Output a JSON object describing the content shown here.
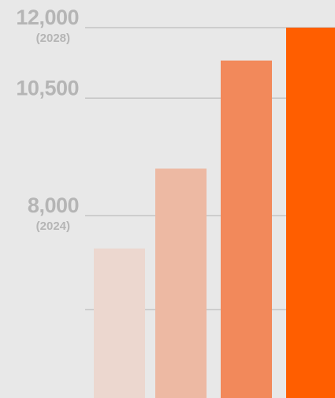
{
  "chart_data": {
    "type": "bar",
    "categories": [
      "",
      "",
      "",
      ""
    ],
    "values": [
      7300,
      9000,
      11300,
      12000
    ],
    "colors": [
      "#ecd7cf",
      "#edb9a3",
      "#f2895b",
      "#ff5e00"
    ],
    "ylim": [
      5500,
      12000
    ],
    "yticks": [
      {
        "value": 12000,
        "label": "12,000",
        "sublabel": "(2028)"
      },
      {
        "value": 10500,
        "label": "10,500",
        "sublabel": ""
      },
      {
        "value": 8000,
        "label": "8,000",
        "sublabel": "(2024)"
      },
      {
        "value": 6000,
        "label": "",
        "sublabel": ""
      }
    ],
    "grid": true,
    "gridline_color": "#c4c4c4",
    "background": "#e8e8e8",
    "tick_color": "#b5b5b5"
  }
}
